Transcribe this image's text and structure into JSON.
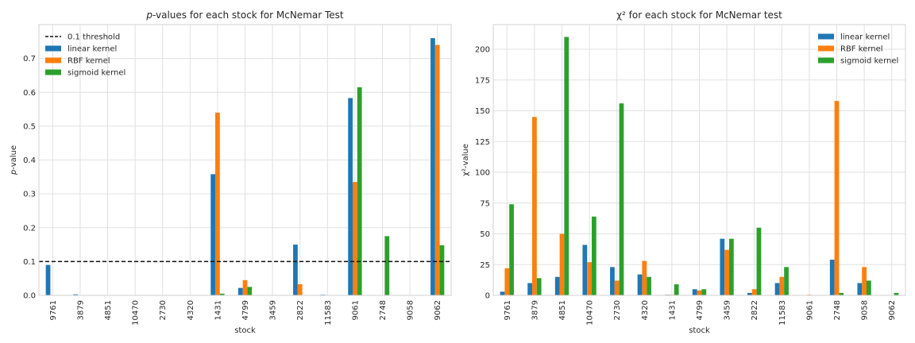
{
  "chart_data": [
    {
      "type": "bar",
      "title_prefix": "p",
      "title": "-values for each stock for McNemar Test",
      "xlabel": "stock",
      "ylabel_prefix": "p",
      "ylabel": "-value",
      "ylim": [
        0,
        0.8
      ],
      "yticks": [
        "0.0",
        "0.1",
        "0.2",
        "0.3",
        "0.4",
        "0.5",
        "0.6",
        "0.7"
      ],
      "categories": [
        "9761",
        "3879",
        "4851",
        "10470",
        "2730",
        "4320",
        "1431",
        "4799",
        "3459",
        "2822",
        "11583",
        "9061",
        "2748",
        "9058",
        "9062"
      ],
      "series": [
        {
          "name": "linear kernel",
          "color": "#1f77b4",
          "values": [
            0.09,
            0.003,
            0,
            0,
            0,
            0,
            0.358,
            0.022,
            0,
            0.15,
            0.002,
            0.583,
            0,
            0,
            0.76
          ]
        },
        {
          "name": "RBF kernel",
          "color": "#ff7f0e",
          "values": [
            0,
            0,
            0,
            0,
            0,
            0,
            0.54,
            0.045,
            0,
            0.033,
            0,
            0.335,
            0,
            0,
            0.74
          ]
        },
        {
          "name": "sigmoid kernel",
          "color": "#2ca02c",
          "values": [
            0,
            0,
            0,
            0,
            0,
            0,
            0.005,
            0.025,
            0,
            0,
            0,
            0.615,
            0.175,
            0,
            0.148
          ]
        }
      ],
      "threshold": {
        "name": "0.1 threshold",
        "value": 0.1
      },
      "grid": true,
      "legend_position": "top-left"
    },
    {
      "type": "bar",
      "title": "χ² for each stock for McNemar test",
      "xlabel": "stock",
      "ylabel": "χ²-value",
      "ylim": [
        0,
        220
      ],
      "yticks": [
        "0",
        "25",
        "50",
        "75",
        "100",
        "125",
        "150",
        "175",
        "200"
      ],
      "categories": [
        "9761",
        "3879",
        "4851",
        "10470",
        "2730",
        "4320",
        "1431",
        "4799",
        "3459",
        "2822",
        "11583",
        "9061",
        "2748",
        "9058",
        "9062"
      ],
      "series": [
        {
          "name": "linear kernel",
          "color": "#1f77b4",
          "values": [
            3,
            10,
            15,
            41,
            23,
            17,
            0.5,
            5,
            46,
            2,
            10,
            0,
            29,
            10,
            0
          ]
        },
        {
          "name": "RBF kernel",
          "color": "#ff7f0e",
          "values": [
            22,
            145,
            50,
            27,
            12,
            28,
            0.5,
            4,
            37,
            5,
            15,
            0.5,
            158,
            23,
            0
          ]
        },
        {
          "name": "sigmoid kernel",
          "color": "#2ca02c",
          "values": [
            74,
            14,
            210,
            64,
            156,
            15,
            9,
            5,
            46,
            55,
            23,
            0,
            2,
            12,
            2
          ]
        }
      ],
      "grid": true,
      "legend_position": "top-right"
    }
  ]
}
